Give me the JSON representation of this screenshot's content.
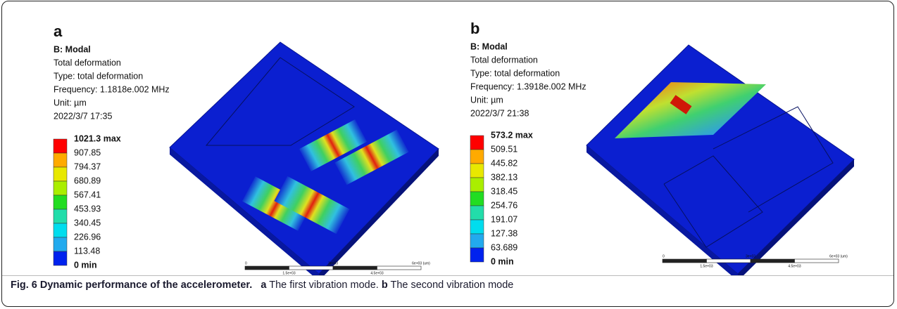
{
  "panels": [
    {
      "label": "a",
      "title": "B: Modal",
      "lines": [
        "Total deformation",
        "Type: total deformation",
        "Frequency: 1.1818e.002 MHz",
        "Unit: µm",
        "2022/3/7 17:35"
      ],
      "legend": [
        "1021.3 max",
        "907.85",
        "794.37",
        "680.89",
        "567.41",
        "453.93",
        "340.45",
        "226.96",
        "113.48",
        "0 min"
      ],
      "scale_bar": {
        "top": [
          "0",
          "3e+03",
          "6e+03 (um)"
        ],
        "bottom": [
          "1.5e+03",
          "4.5e+03"
        ]
      }
    },
    {
      "label": "b",
      "title": "B: Modal",
      "lines": [
        "Total deformation",
        "Type: total deformation",
        "Frequency: 1.3918e.002 MHz",
        "Unit: µm",
        "2022/3/7 21:38"
      ],
      "legend": [
        "573.2 max",
        "509.51",
        "445.82",
        "382.13",
        "318.45",
        "254.76",
        "191.07",
        "127.38",
        "63.689",
        "0 min"
      ],
      "scale_bar": {
        "top": [
          "0",
          "3e+03",
          "6e+03 (um)"
        ],
        "bottom": [
          "1.5e+03",
          "4.5e+03"
        ]
      }
    }
  ],
  "caption": {
    "title": "Fig. 6 Dynamic performance of the accelerometer.",
    "parts": [
      {
        "label": "a",
        "text": "The first vibration mode."
      },
      {
        "label": "b",
        "text": "The second vibration mode"
      }
    ]
  }
}
